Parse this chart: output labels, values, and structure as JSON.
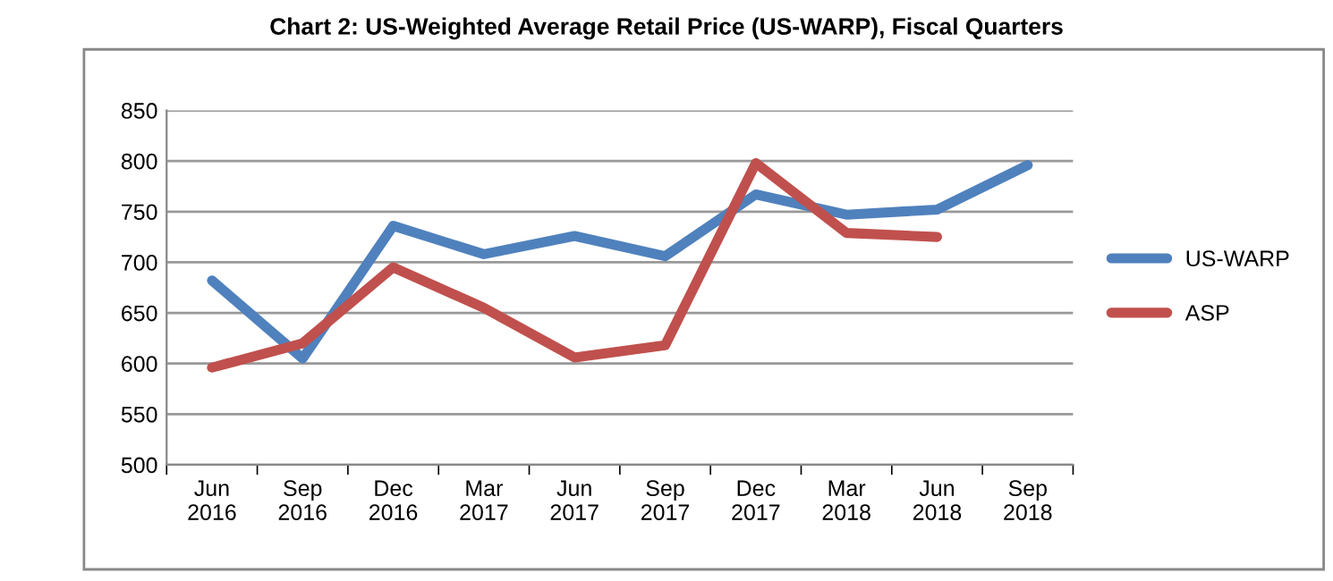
{
  "chart_data": {
    "type": "line",
    "title": "Chart 2: US-Weighted Average Retail Price (US-WARP), Fiscal Quarters",
    "categories": [
      "Jun\n2016",
      "Sep\n2016",
      "Dec\n2016",
      "Mar\n2017",
      "Jun\n2017",
      "Sep\n2017",
      "Dec\n2017",
      "Mar\n2018",
      "Jun\n2018",
      "Sep\n2018"
    ],
    "series": [
      {
        "name": "US-WARP",
        "color": "#4f81bd",
        "values": [
          682,
          605,
          736,
          708,
          726,
          706,
          767,
          747,
          752,
          796
        ]
      },
      {
        "name": "ASP",
        "color": "#c0504d",
        "values": [
          596,
          620,
          695,
          655,
          606,
          618,
          798,
          729,
          725,
          null
        ]
      }
    ],
    "ylim": [
      500,
      850
    ],
    "yticks": [
      500,
      550,
      600,
      650,
      700,
      750,
      800,
      850
    ],
    "grid": "y",
    "legend": "right",
    "marker": "none",
    "line_style": "solid"
  }
}
